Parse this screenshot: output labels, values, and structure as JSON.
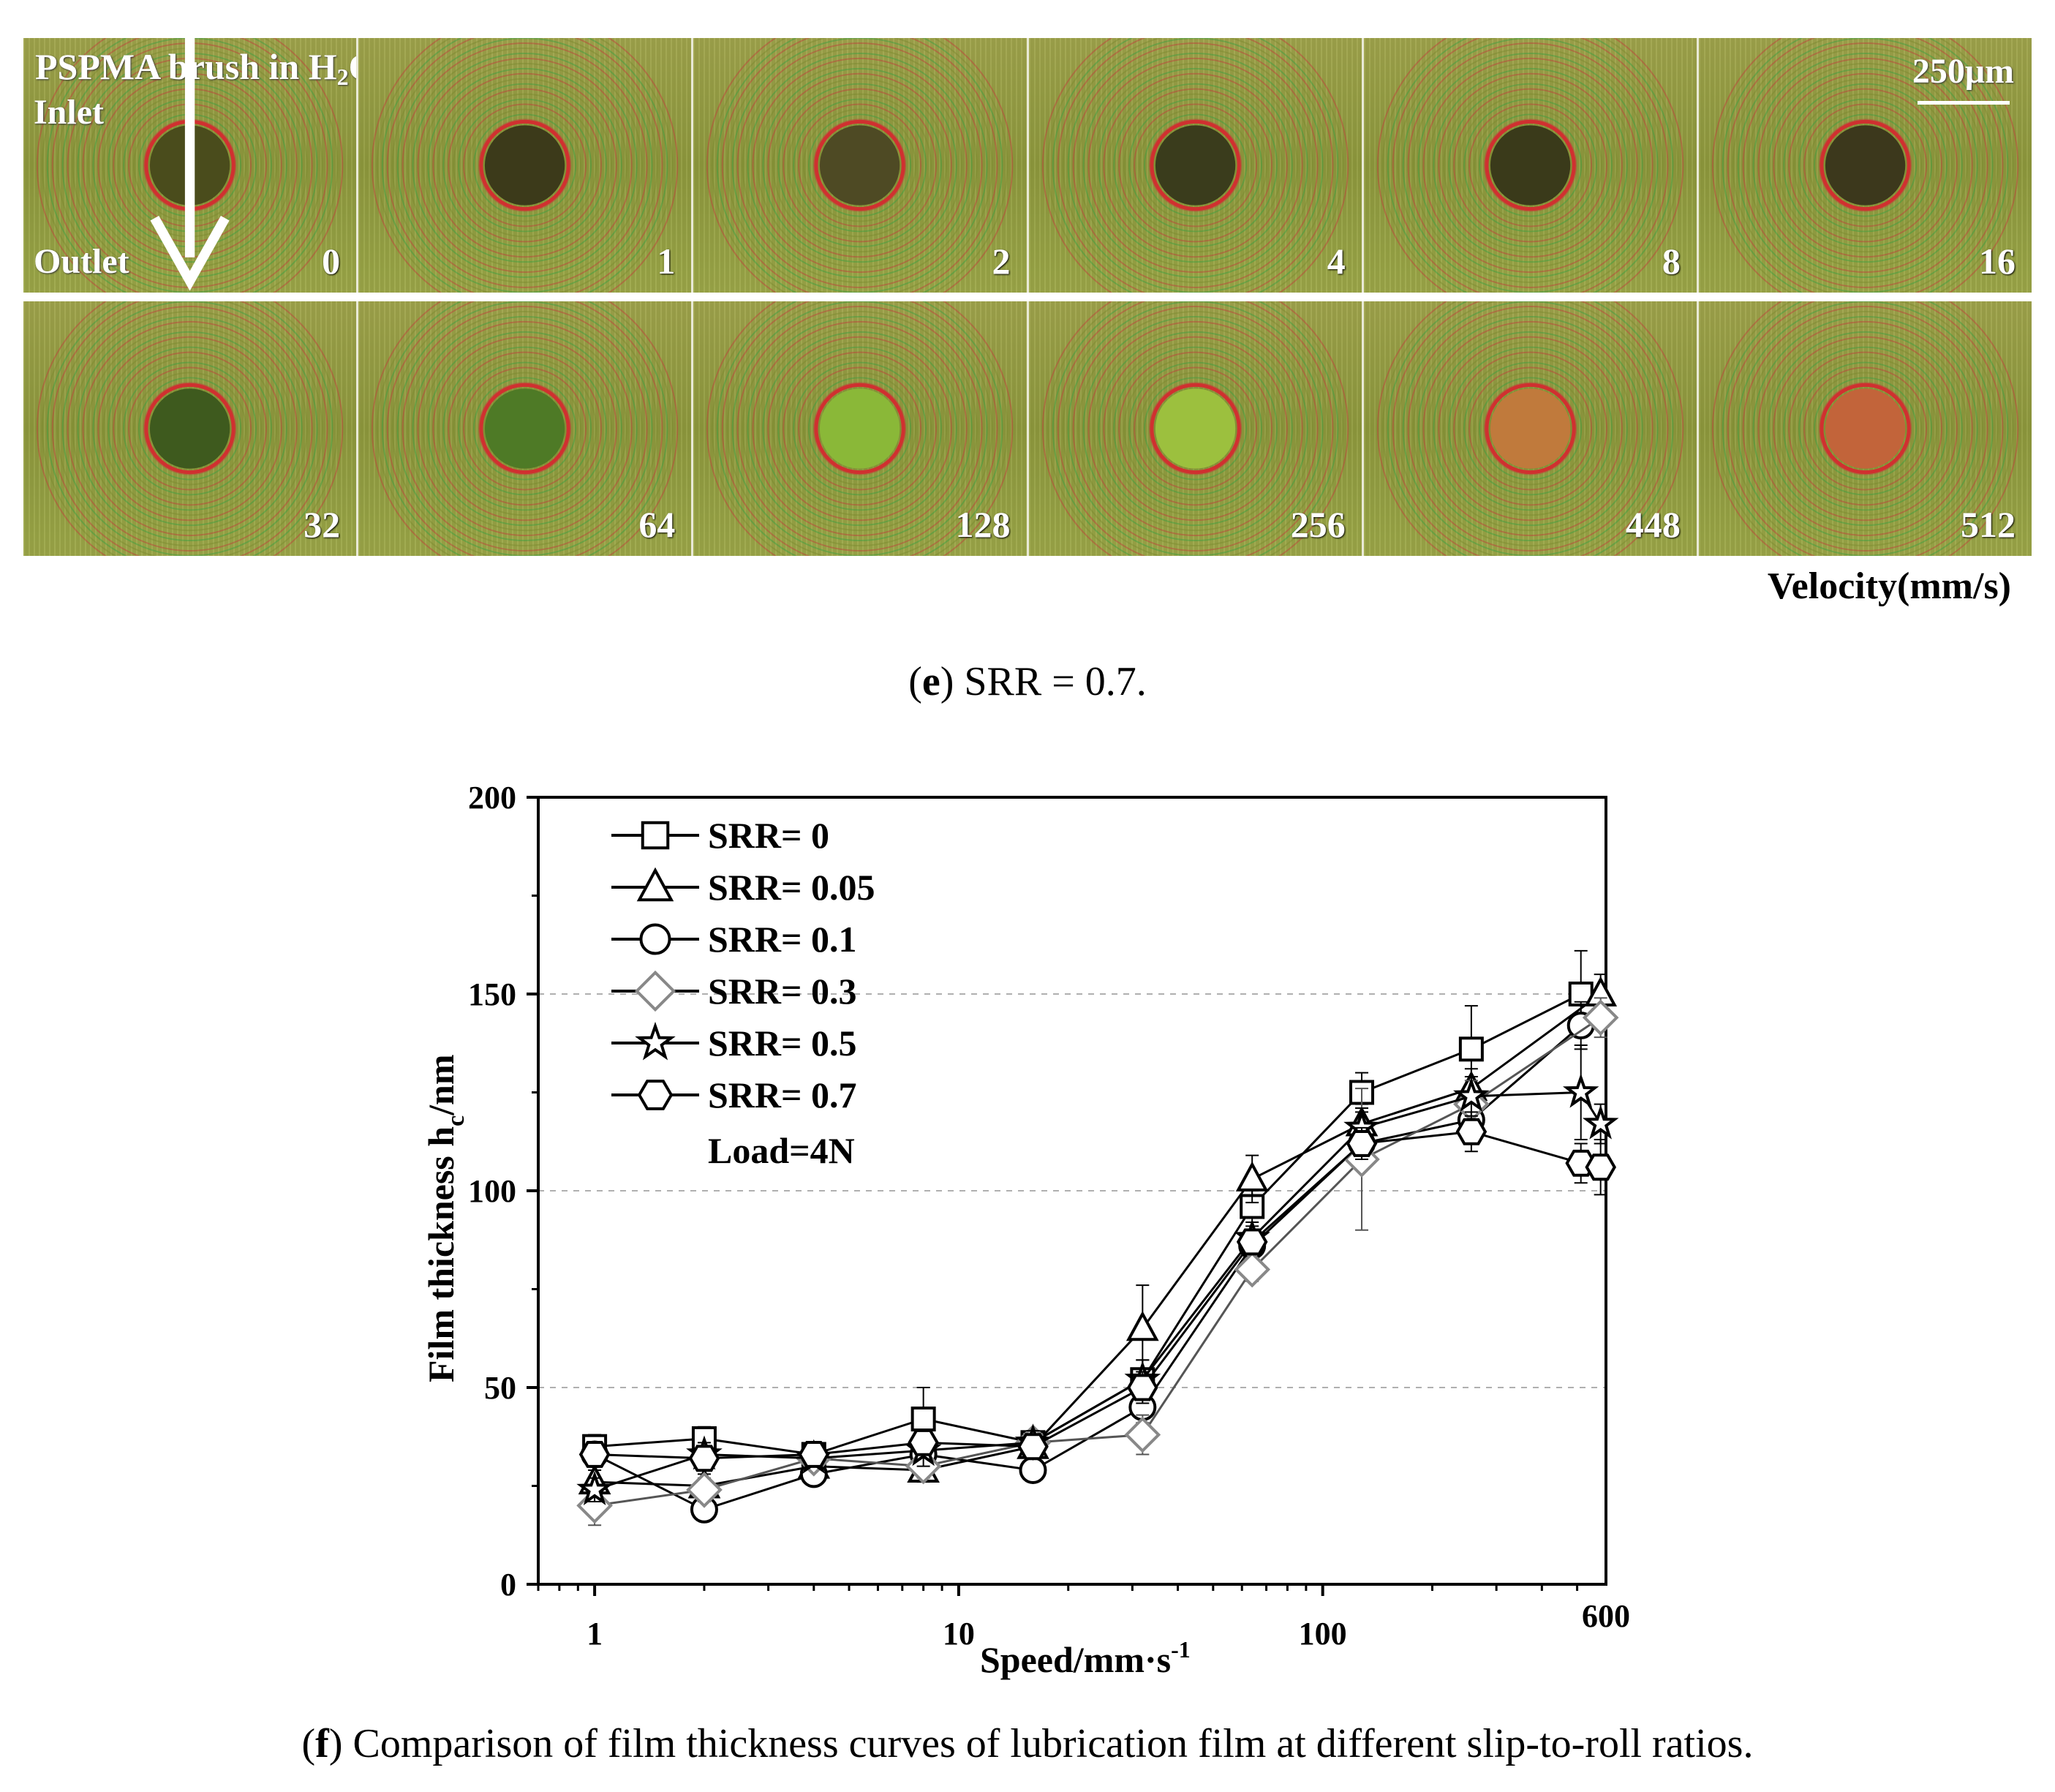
{
  "panel_e": {
    "overlay_title": "PSPMA brush in H",
    "overlay_title_sub": "2",
    "overlay_title_tail": "O",
    "inlet_label": "Inlet",
    "outlet_label": "Outlet",
    "scale_bar": "250μm",
    "velocity_label": "Velocity(mm/s)",
    "row1_velocities": [
      "0",
      "1",
      "2",
      "4",
      "8",
      "16"
    ],
    "row2_velocities": [
      "32",
      "64",
      "128",
      "256",
      "448",
      "512"
    ],
    "caption_letter": "e",
    "caption_text": ") SRR = 0.7."
  },
  "panel_f": {
    "caption_letter": "f",
    "caption_text": ") Comparison of film thickness curves of lubrication film at different slip-to-roll ratios."
  },
  "chart_data": {
    "type": "line",
    "xscale": "log",
    "xlim": [
      0.7,
      600
    ],
    "ylim": [
      0,
      200
    ],
    "xlabel": "Speed/mm·s",
    "xlabel_sup": "-1",
    "ylabel": "Film thickness h",
    "ylabel_sub": "c",
    "ylabel_tail": "/nm",
    "x_tick_labels": [
      "1",
      "10",
      "100",
      "600"
    ],
    "x_tick_values": [
      1,
      10,
      100,
      600
    ],
    "y_tick_labels": [
      "0",
      "50",
      "100",
      "150",
      "200"
    ],
    "y_tick_values": [
      0,
      50,
      100,
      150,
      200
    ],
    "grid": "horizontal dashed",
    "legend_position": "top-left",
    "annotation": "Load=4N",
    "series": [
      {
        "name": "SRR= 0",
        "marker": "square",
        "x": [
          1,
          2,
          4,
          8,
          16,
          32,
          64,
          128,
          256,
          512
        ],
        "y": [
          35,
          37,
          33,
          42,
          36,
          52,
          96,
          125,
          136,
          150
        ],
        "err": [
          3,
          3,
          2,
          8,
          3,
          5,
          4,
          5,
          11,
          11
        ]
      },
      {
        "name": "SRR= 0.05",
        "marker": "triangle",
        "x": [
          1,
          2,
          4,
          8,
          16,
          32,
          64,
          128,
          256,
          580
        ],
        "y": [
          26,
          25,
          30,
          29,
          35,
          65,
          103,
          117,
          126,
          150
        ],
        "err": [
          3,
          3,
          2,
          3,
          3,
          11,
          6,
          5,
          5,
          5
        ]
      },
      {
        "name": "SRR= 0.1",
        "marker": "circle",
        "x": [
          1,
          2,
          4,
          8,
          16,
          32,
          64,
          128,
          256,
          512
        ],
        "y": [
          33,
          19,
          28,
          33,
          29,
          45,
          86,
          112,
          118,
          142
        ],
        "err": [
          3,
          2,
          2,
          3,
          2,
          4,
          4,
          5,
          5,
          6
        ]
      },
      {
        "name": "SRR= 0.3",
        "marker": "diamond",
        "x": [
          1,
          2,
          4,
          8,
          16,
          32,
          64,
          128,
          256,
          580
        ],
        "y": [
          20,
          24,
          32,
          30,
          36,
          38,
          80,
          108,
          122,
          144
        ],
        "err": [
          5,
          3,
          2,
          3,
          3,
          5,
          3,
          18,
          6,
          5
        ]
      },
      {
        "name": "SRR= 0.5",
        "marker": "star",
        "x": [
          1,
          2,
          4,
          8,
          16,
          32,
          64,
          128,
          256,
          512,
          580
        ],
        "y": [
          24,
          33,
          32,
          34,
          36,
          52,
          88,
          116,
          124,
          125,
          117
        ],
        "err": [
          3,
          3,
          2,
          4,
          3,
          5,
          3,
          5,
          5,
          12,
          5
        ]
      },
      {
        "name": "SRR= 0.7",
        "marker": "hexagon",
        "x": [
          1,
          2,
          4,
          8,
          16,
          32,
          64,
          128,
          256,
          512,
          580
        ],
        "y": [
          33,
          32,
          33,
          36,
          35,
          50,
          87,
          112,
          115,
          107,
          106
        ],
        "err": [
          3,
          3,
          2,
          3,
          3,
          4,
          3,
          4,
          5,
          5,
          7
        ]
      }
    ]
  }
}
